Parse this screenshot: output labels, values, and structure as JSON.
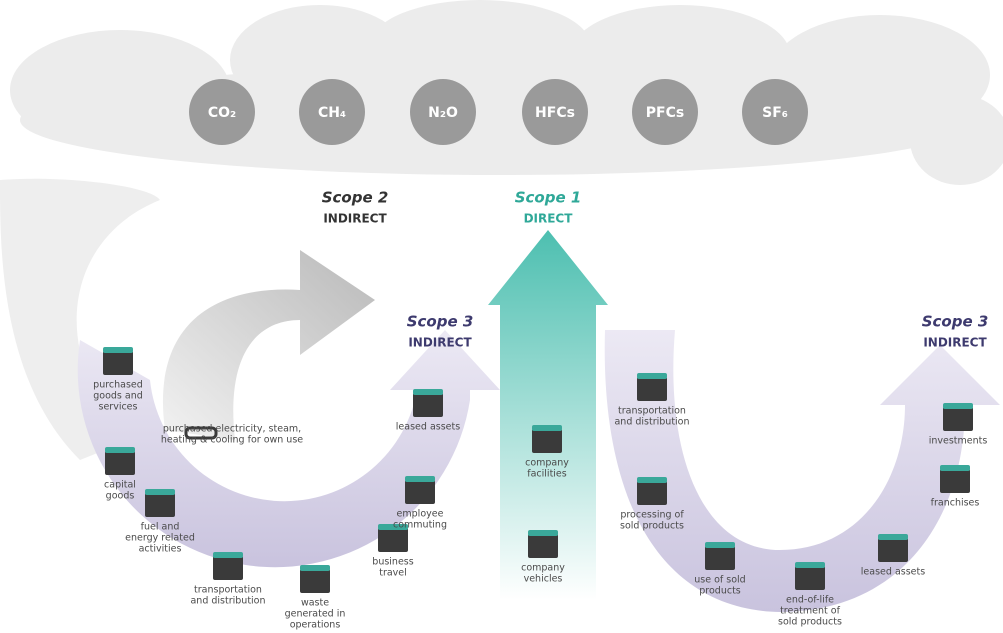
{
  "gases": [
    "CO₂",
    "CH₄",
    "N₂O",
    "HFCs",
    "PFCs",
    "SF₆"
  ],
  "scope2": {
    "title": "Scope 2",
    "subtitle": "INDIRECT",
    "activity": [
      "purchased electricity, steam,",
      "heating & cooling for own use"
    ]
  },
  "scope1": {
    "title": "Scope 1",
    "subtitle": "DIRECT",
    "activities": [
      [
        "company",
        "facilities"
      ],
      [
        "company",
        "vehicles"
      ]
    ]
  },
  "scope3_upstream": {
    "title": "Scope 3",
    "subtitle": "INDIRECT",
    "activities": [
      [
        "purchased",
        "goods and",
        "services"
      ],
      [
        "capital",
        "goods"
      ],
      [
        "fuel and",
        "energy related",
        "activities"
      ],
      [
        "transportation",
        "and distribution"
      ],
      [
        "waste",
        "generated in",
        "operations"
      ],
      [
        "business",
        "travel"
      ],
      [
        "employee",
        "commuting"
      ],
      [
        "leased assets"
      ]
    ]
  },
  "scope3_downstream": {
    "title": "Scope 3",
    "subtitle": "INDIRECT",
    "activities": [
      [
        "transportation",
        "and distribution"
      ],
      [
        "processing of",
        "sold products"
      ],
      [
        "use of sold",
        "products"
      ],
      [
        "end-of-life",
        "treatment of",
        "sold products"
      ],
      [
        "leased assets"
      ],
      [
        "franchises"
      ],
      [
        "investments"
      ]
    ]
  }
}
